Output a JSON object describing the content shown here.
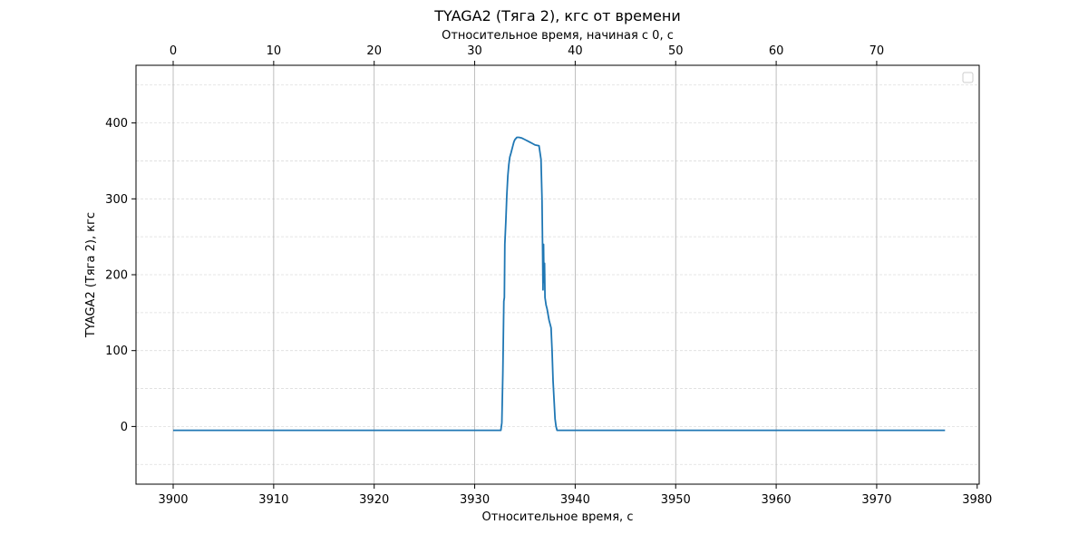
{
  "chart_data": {
    "type": "line",
    "title": "TYAGA2 (Тяга 2), кгс от времени",
    "xlabel": "Относительное время, с",
    "xlabel_top": "Относительное время, начиная с 0, с",
    "ylabel": "TYAGA2 (Тяга 2), кгс",
    "xlim": [
      3896.3,
      3980.2
    ],
    "ylim": [
      -76,
      476
    ],
    "xlim_top": [
      0,
      76.9
    ],
    "top_axis_offset": 3900,
    "x_ticks": [
      3900,
      3910,
      3920,
      3930,
      3940,
      3950,
      3960,
      3970,
      3980
    ],
    "x_tick_labels": [
      "3900",
      "3910",
      "3920",
      "3930",
      "3940",
      "3950",
      "3960",
      "3970",
      "3980"
    ],
    "x_top_ticks": [
      0,
      10,
      20,
      30,
      40,
      50,
      60,
      70
    ],
    "x_top_tick_labels": [
      "0",
      "10",
      "20",
      "30",
      "40",
      "50",
      "60",
      "70"
    ],
    "y_ticks": [
      0,
      100,
      200,
      300,
      400
    ],
    "y_tick_labels": [
      "0",
      "100",
      "200",
      "300",
      "400"
    ],
    "y_minor_grid": [
      -50,
      50,
      150,
      250,
      350,
      450
    ],
    "grid": true,
    "legend": "top-right (empty)",
    "line_color": "#1f77b4",
    "series": [
      {
        "x": [
          3900.0,
          3932.6,
          3932.7,
          3932.8,
          3932.9,
          3932.95,
          3933.0,
          3933.1,
          3933.2,
          3933.3,
          3933.4,
          3933.5,
          3933.6,
          3933.7,
          3933.8,
          3933.9,
          3934.0,
          3934.2,
          3934.4,
          3934.7,
          3935.0,
          3935.3,
          3935.6,
          3936.0,
          3936.4,
          3936.6,
          3936.7,
          3936.75,
          3936.8,
          3936.85,
          3936.9,
          3936.95,
          3937.0,
          3937.05,
          3937.1,
          3937.2,
          3937.4,
          3937.6,
          3937.7,
          3937.8,
          3937.9,
          3938.0,
          3938.1,
          3938.2,
          3938.4,
          3976.8
        ],
        "y": [
          -5,
          -5,
          5,
          70,
          165,
          170,
          240,
          270,
          305,
          330,
          345,
          355,
          360,
          365,
          370,
          375,
          378,
          381,
          381,
          380,
          378,
          376,
          374,
          371,
          370,
          352,
          300,
          240,
          180,
          240,
          190,
          215,
          170,
          165,
          160,
          155,
          140,
          130,
          100,
          60,
          35,
          10,
          0,
          -5,
          -5,
          -5
        ]
      }
    ]
  }
}
